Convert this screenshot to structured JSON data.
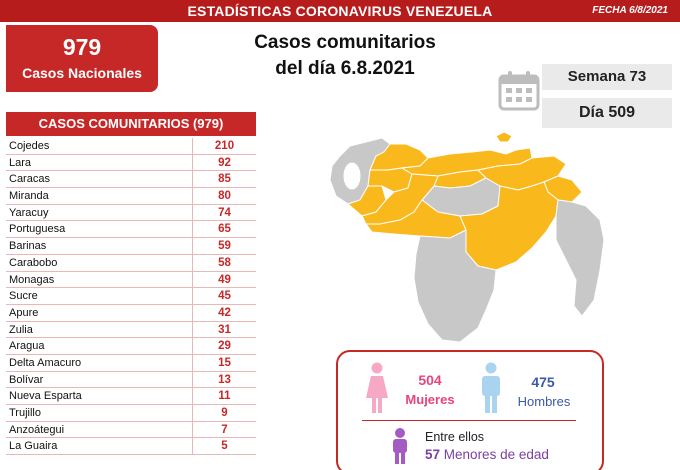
{
  "header": {
    "title": "ESTADÍSTICAS CORONAVIRUS VENEZUELA",
    "date": "FECHA 6/8/2021"
  },
  "national": {
    "total": "979",
    "label": "Casos Nacionales"
  },
  "headline": {
    "line1": "Casos comunitarios",
    "line2": "del día 6.8.2021"
  },
  "period": {
    "week": "Semana 73",
    "day": "Día 509"
  },
  "table": {
    "title": "CASOS COMUNITARIOS (979)",
    "rows": [
      {
        "state": "Cojedes",
        "cases": "210"
      },
      {
        "state": "Lara",
        "cases": "92"
      },
      {
        "state": "Caracas",
        "cases": "85"
      },
      {
        "state": "Miranda",
        "cases": "80"
      },
      {
        "state": "Yaracuy",
        "cases": "74"
      },
      {
        "state": "Portuguesa",
        "cases": "65"
      },
      {
        "state": "Barinas",
        "cases": "59"
      },
      {
        "state": "Carabobo",
        "cases": "58"
      },
      {
        "state": "Monagas",
        "cases": "49"
      },
      {
        "state": "Sucre",
        "cases": "45"
      },
      {
        "state": "Apure",
        "cases": "42"
      },
      {
        "state": "Zulia",
        "cases": "31"
      },
      {
        "state": "Aragua",
        "cases": "29"
      },
      {
        "state": "Delta Amacuro",
        "cases": "15"
      },
      {
        "state": "Bolívar",
        "cases": "13"
      },
      {
        "state": "Nueva Esparta",
        "cases": "11"
      },
      {
        "state": "Trujillo",
        "cases": "9"
      },
      {
        "state": "Anzoátegui",
        "cases": "7"
      },
      {
        "state": "La Guaira",
        "cases": "5"
      }
    ]
  },
  "demographics": {
    "women_count": "504",
    "women_label": "Mujeres",
    "men_count": "475",
    "men_label": "Hombres",
    "children_prefix": "Entre ellos",
    "children_count": "57",
    "children_label": "Menores de edad"
  },
  "colors": {
    "brand_red": "#c62828",
    "affected_state": "#f9b81c",
    "unaffected_state": "#c8c8c8",
    "women": "#e8447c",
    "men": "#3b5aa8",
    "children": "#7b3fa0"
  },
  "icons": {
    "calendar": "calendar-icon",
    "woman": "woman-icon",
    "man": "man-icon",
    "child": "child-icon"
  }
}
